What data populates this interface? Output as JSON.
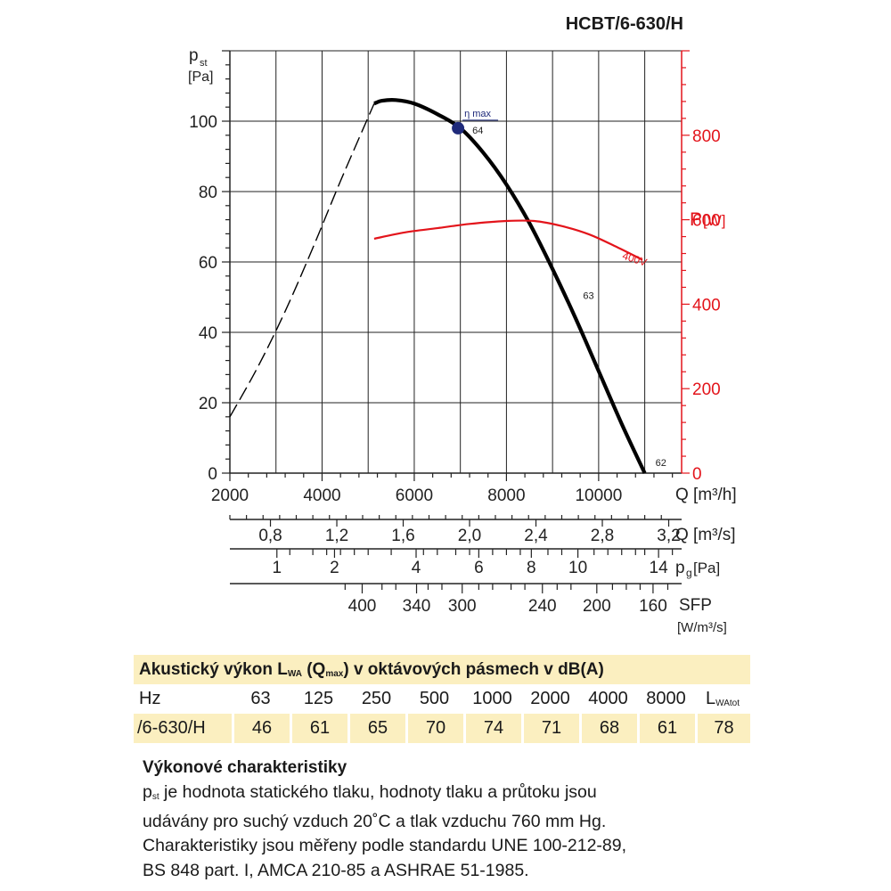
{
  "model": "HCBT/6-630/H",
  "chart_data": {
    "type": "line",
    "xlabel": "Q [m³/h]",
    "xlim": [
      2000,
      11800
    ],
    "x_ticks": [
      2000,
      4000,
      6000,
      8000,
      10000
    ],
    "ylabel_left": "pst [Pa]",
    "ylim_left": [
      0,
      120
    ],
    "y_ticks_left": [
      0,
      20,
      40,
      60,
      80,
      100
    ],
    "ylabel_right": "P[W]",
    "ylim_right": [
      0,
      1000
    ],
    "y_ticks_right": [
      0,
      200,
      400,
      600,
      800
    ],
    "grid": true,
    "series": [
      {
        "name": "",
        "axis": "left",
        "style": "dashed",
        "x": [
          2000,
          2600,
          3200,
          3800,
          4400,
          5130
        ],
        "y": [
          16,
          30,
          46,
          64,
          83,
          105
        ]
      },
      {
        "name": "",
        "axis": "left",
        "style": "solid",
        "x": [
          5130,
          5300,
          5600,
          6000,
          6500,
          7000,
          7500,
          8000,
          8500,
          9000,
          9500,
          10000,
          10500,
          11000
        ],
        "y": [
          105,
          105.8,
          106,
          105,
          102,
          98,
          91,
          82,
          71,
          58,
          44,
          29,
          14,
          0
        ]
      },
      {
        "name": "400V",
        "axis": "right",
        "style": "solid",
        "x": [
          5130,
          5800,
          6500,
          7200,
          8000,
          8600,
          9200,
          9800,
          10400,
          10950
        ],
        "y": [
          555,
          570,
          580,
          590,
          597,
          597,
          585,
          565,
          535,
          505
        ]
      }
    ],
    "annotations": [
      {
        "text": "η max",
        "x": 6950,
        "y": 98,
        "marker": true
      },
      {
        "text": "64",
        "x": 6950,
        "y": 98
      },
      {
        "text": "63",
        "x": 9700,
        "y": 51
      },
      {
        "text": "62",
        "x": 11000,
        "y": 0
      }
    ],
    "secondary_scales": [
      {
        "label": "Q [m³/s]",
        "ticks": [
          {
            "x": 2880,
            "label": "0,8"
          },
          {
            "x": 4320,
            "label": "1,2"
          },
          {
            "x": 5760,
            "label": "1,6"
          },
          {
            "x": 7200,
            "label": "2,0"
          },
          {
            "x": 8640,
            "label": "2,4"
          },
          {
            "x": 10080,
            "label": "2,8"
          },
          {
            "x": 11520,
            "label": "3,2"
          }
        ]
      },
      {
        "label": "pg[Pa]",
        "ticks": [
          {
            "x": 3020,
            "label": "1"
          },
          {
            "x": 4270,
            "label": "2"
          },
          {
            "x": 6040,
            "label": "4"
          },
          {
            "x": 7400,
            "label": "6"
          },
          {
            "x": 8540,
            "label": "8"
          },
          {
            "x": 9550,
            "label": "10"
          },
          {
            "x": 11300,
            "label": "14"
          }
        ],
        "tick_marks": [
          3300,
          3800,
          4100,
          4400,
          4700,
          5000,
          5500,
          6200,
          6500,
          6900,
          7200,
          7700,
          8000,
          8300,
          8900,
          9200,
          9900,
          10200,
          10500,
          10800,
          11000,
          11600
        ]
      },
      {
        "label": "SFP [W/m³/s]",
        "ticks": [
          {
            "x": 4870,
            "label": "400"
          },
          {
            "x": 6050,
            "label": "340"
          },
          {
            "x": 7040,
            "label": "300"
          },
          {
            "x": 8780,
            "label": "240"
          },
          {
            "x": 9960,
            "label": "200"
          },
          {
            "x": 11180,
            "label": "160"
          }
        ],
        "tick_marks": [
          4500,
          5300,
          5600,
          6300,
          6600,
          7400,
          7700,
          8100,
          8400,
          9100,
          9400,
          10300,
          10600,
          10900,
          11500
        ]
      }
    ]
  },
  "scale_labels": {
    "pst_main": "p",
    "pst_sub": "st",
    "pst_unit": "[Pa]",
    "pw_main": "P",
    "pw_unit": "[W]",
    "q_h": "Q [m³/h]",
    "q_s": "Q [m³/s]",
    "pg_main": "p",
    "pg_sub": "g",
    "pg_unit": "[Pa]",
    "sfp": "SFP",
    "sfp_unit": "[W/m³/s]",
    "series_400v": "400V",
    "eta": "η max"
  },
  "acoustic": {
    "title_a": "Akustický výkon L",
    "title_sub1": "WA",
    "title_b": " (Q",
    "title_sub2": "max",
    "title_c": ") v oktávových pásmech v dB(A)",
    "hz_label": "Hz",
    "frequencies": [
      "63",
      "125",
      "250",
      "500",
      "1000",
      "2000",
      "4000",
      "8000"
    ],
    "total_main": "L",
    "total_sub": "WAtot",
    "row_label": "/6-630/H",
    "values": [
      "46",
      "61",
      "65",
      "70",
      "74",
      "71",
      "68",
      "61"
    ],
    "total": "78"
  },
  "description": {
    "title": "Výkonové charakteristiky",
    "pst_main": "p",
    "pst_sub": "st",
    "line1_rest": " je hodnota statického tlaku, hodnoty tlaku a průtoku jsou",
    "line2": "udávány pro suchý vzduch 20˚C a tlak vzduchu 760 mm Hg.",
    "line3": "Charakteristiky jsou měřeny podle standardu UNE 100-212-89,",
    "line4": "BS 848 part. I, AMCA 210-85 a ASHRAE 51-1985."
  },
  "colors": {
    "main_curve": "#000000",
    "power_curve": "#e3141b",
    "right_axis": "#e3141b",
    "eta_marker": "#1f2a7a",
    "table_highlight": "#fbefc0"
  }
}
